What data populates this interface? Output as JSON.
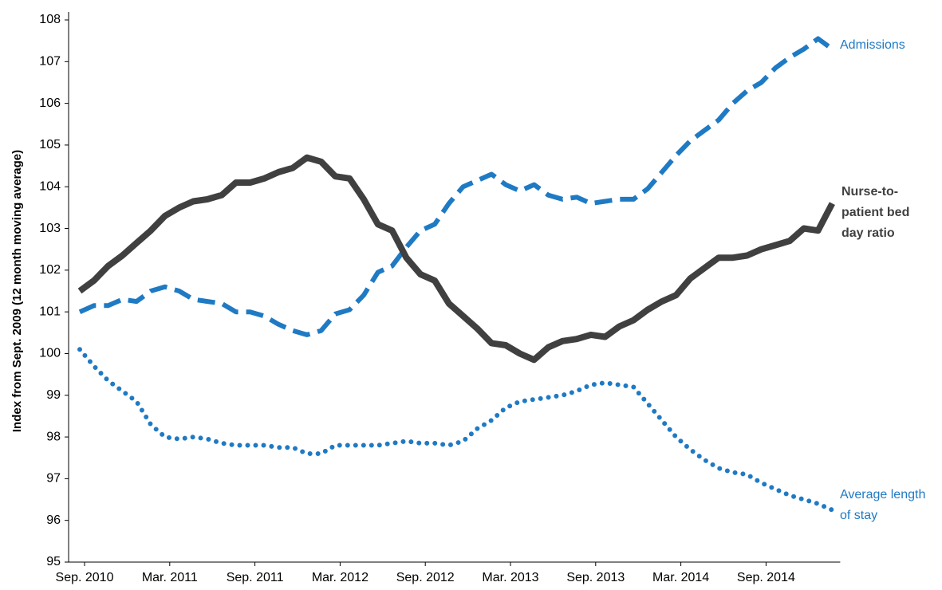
{
  "chart_data": {
    "type": "line",
    "y_label": "Index from Sept. 2009 (12 month moving average)",
    "categories": [
      "Sep. 2010",
      null,
      null,
      null,
      null,
      null,
      "Mar. 2011",
      null,
      null,
      null,
      null,
      null,
      "Sep. 2011",
      null,
      null,
      null,
      null,
      null,
      "Mar. 2012",
      null,
      null,
      null,
      null,
      null,
      "Sep. 2012",
      null,
      null,
      null,
      null,
      null,
      "Mar. 2013",
      null,
      null,
      null,
      null,
      null,
      "Sep. 2013",
      null,
      null,
      null,
      null,
      null,
      "Mar. 2014",
      null,
      null,
      null,
      null,
      null,
      "Sep. 2014",
      null,
      null,
      null,
      null,
      null
    ],
    "ylim": [
      95,
      108
    ],
    "yticks": [
      95,
      96,
      97,
      98,
      99,
      100,
      101,
      102,
      103,
      104,
      105,
      106,
      107,
      108
    ],
    "grid": false,
    "series": [
      {
        "name": "Admissions",
        "color": "#1f7ac4",
        "style": "dashed",
        "values": [
          101.0,
          101.15,
          101.15,
          101.3,
          101.25,
          101.5,
          101.6,
          101.5,
          101.3,
          101.25,
          101.2,
          101.0,
          101.0,
          100.9,
          100.7,
          100.55,
          100.45,
          100.55,
          100.95,
          101.05,
          101.4,
          101.95,
          102.1,
          102.55,
          102.95,
          103.1,
          103.6,
          104.0,
          104.15,
          104.3,
          104.05,
          103.9,
          104.05,
          103.8,
          103.7,
          103.75,
          103.6,
          103.65,
          103.7,
          103.7,
          103.95,
          104.35,
          104.75,
          105.1,
          105.35,
          105.6,
          106.0,
          106.3,
          106.5,
          106.85,
          107.1,
          107.3,
          107.55,
          107.3
        ]
      },
      {
        "name": "Nurse-to-patient bed day ratio",
        "color": "#404040",
        "style": "solid",
        "values": [
          101.5,
          101.75,
          102.1,
          102.35,
          102.65,
          102.95,
          103.3,
          103.5,
          103.65,
          103.7,
          103.8,
          104.1,
          104.1,
          104.2,
          104.35,
          104.45,
          104.7,
          104.6,
          104.25,
          104.2,
          103.7,
          103.1,
          102.95,
          102.3,
          101.9,
          101.75,
          101.2,
          100.9,
          100.6,
          100.25,
          100.2,
          100.0,
          99.85,
          100.15,
          100.3,
          100.35,
          100.45,
          100.4,
          100.65,
          100.8,
          101.05,
          101.25,
          101.4,
          101.8,
          102.05,
          102.3,
          102.3,
          102.35,
          102.5,
          102.6,
          102.7,
          103.0,
          102.95,
          103.6
        ]
      },
      {
        "name": "Average length of stay",
        "color": "#1f7ac4",
        "style": "dotted",
        "values": [
          100.1,
          99.7,
          99.35,
          99.1,
          98.85,
          98.3,
          98.0,
          97.95,
          98.0,
          97.95,
          97.85,
          97.8,
          97.8,
          97.8,
          97.75,
          97.75,
          97.6,
          97.6,
          97.8,
          97.8,
          97.8,
          97.8,
          97.85,
          97.9,
          97.85,
          97.85,
          97.8,
          97.9,
          98.2,
          98.4,
          98.7,
          98.85,
          98.9,
          98.95,
          99.0,
          99.1,
          99.25,
          99.3,
          99.25,
          99.2,
          98.8,
          98.4,
          98.0,
          97.7,
          97.45,
          97.25,
          97.15,
          97.1,
          96.9,
          96.75,
          96.6,
          96.5,
          96.4,
          96.25
        ]
      }
    ]
  }
}
